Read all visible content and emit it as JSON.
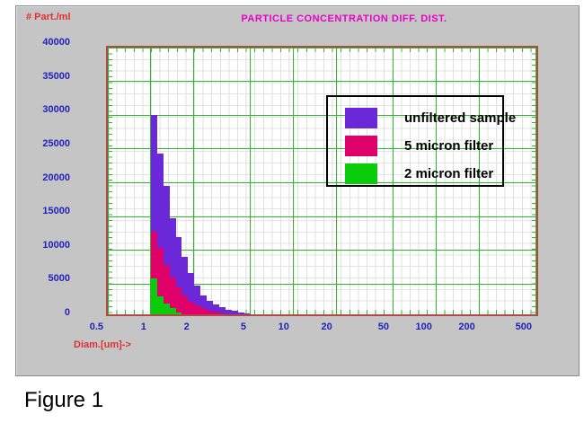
{
  "figure": {
    "caption": "Figure 1"
  },
  "panel": {
    "title": "PARTICLE CONCENTRATION DIFF. DIST.",
    "y_axis_label": "# Part./ml",
    "x_axis_label": "Diam.[um]->"
  },
  "colors": {
    "panel_bg": "#C5C5C5",
    "plot_bg": "#FFFFFF",
    "plot_border": "#B04848",
    "major_grid": "#2DB92D",
    "minor_grid": "#E0E0E0",
    "tick_label": "#2222BB",
    "axis_label": "#E03030",
    "title": "#E800C8",
    "legend_border": "#000000",
    "caption": "#000000"
  },
  "chart_data": {
    "type": "bar",
    "title": "PARTICLE CONCENTRATION DIFF. DIST.",
    "xlabel": "Diam.[um]->",
    "ylabel": "# Part./ml",
    "x_scale": "log",
    "x_range": [
      0.5,
      530
    ],
    "y_range": [
      0,
      40000
    ],
    "x_ticks": [
      "0.5",
      "1",
      "2",
      "5",
      "10",
      "20",
      "50",
      "100",
      "200",
      "500"
    ],
    "y_ticks": [
      "0",
      "5000",
      "10000",
      "15000",
      "20000",
      "25000",
      "30000",
      "35000",
      "40000"
    ],
    "grid": "on",
    "legend_position": "upper-right",
    "bins": {
      "start": 1.0,
      "per_decade": 23,
      "unit": "um"
    },
    "series": [
      {
        "name": "unfiltered sample",
        "color": "#6A28D8",
        "values": [
          30000,
          24300,
          19500,
          14800,
          11900,
          9000,
          6700,
          4800,
          3300,
          2500,
          1950,
          1550,
          1250,
          1020,
          840,
          700,
          580,
          490,
          410,
          350,
          300,
          260,
          220,
          190,
          165,
          145,
          125,
          110,
          95,
          85,
          75,
          65,
          58,
          52,
          46,
          41,
          36,
          32,
          28,
          25,
          22,
          20,
          18,
          16,
          14,
          13,
          11,
          10,
          9,
          8,
          7,
          7,
          6,
          5,
          5,
          4,
          4,
          3,
          3,
          3,
          2,
          2
        ]
      },
      {
        "name": "5 micron filter",
        "color": "#E0006A",
        "values": [
          12800,
          10300,
          7800,
          6000,
          4500,
          3300,
          2450,
          1850,
          1420,
          1100,
          870,
          700,
          570,
          470,
          390,
          330,
          280,
          235,
          200,
          170,
          145,
          125,
          105,
          90,
          78,
          67,
          58,
          50,
          43,
          37,
          32,
          28,
          24,
          21,
          18,
          16,
          14,
          12,
          11,
          9,
          8,
          7,
          7,
          6,
          5,
          5,
          4,
          4,
          3,
          3,
          3,
          2,
          2,
          2,
          2,
          1,
          1,
          1,
          1,
          1,
          1,
          1
        ]
      },
      {
        "name": "2 micron filter",
        "color": "#0ACC0A",
        "values": [
          5900,
          3200,
          2100,
          1450,
          850,
          520,
          380,
          300,
          260,
          230,
          210,
          195,
          185,
          175,
          165,
          155,
          150,
          140,
          135,
          130,
          125,
          120,
          115,
          110,
          105,
          100,
          95,
          90,
          85,
          80,
          75,
          70,
          65,
          60,
          55,
          50,
          45,
          40,
          35,
          30,
          25,
          22,
          20,
          18,
          16,
          14,
          12,
          10,
          9,
          8,
          7,
          6,
          5,
          4,
          4,
          3,
          3,
          2,
          2,
          2,
          1,
          1
        ]
      }
    ]
  }
}
